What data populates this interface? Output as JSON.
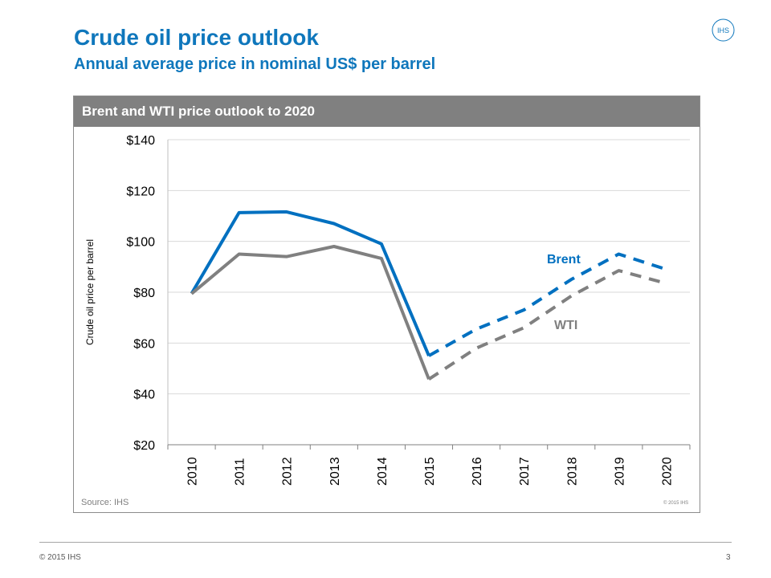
{
  "slide": {
    "title": "Crude oil price outlook",
    "subtitle": "Annual average price in nominal US$ per barrel",
    "logo_text": "IHS"
  },
  "panel": {
    "header": "Brent and WTI price outlook to 2020",
    "source": "Source: IHS",
    "copyright": "© 2015 IHS"
  },
  "footer": {
    "copyright": "© 2015 IHS",
    "page_number": "3"
  },
  "colors": {
    "title": "#0f77bc",
    "brent": "#0070c0",
    "wti": "#808080",
    "header_bg": "#808080"
  },
  "chart_data": {
    "type": "line",
    "title": "Brent and WTI price outlook to 2020",
    "xlabel": "",
    "ylabel": "Crude oil price per barrel",
    "categories": [
      "2010",
      "2011",
      "2012",
      "2013",
      "2014",
      "2015",
      "2016",
      "2017",
      "2018",
      "2019",
      "2020"
    ],
    "ylim": [
      20,
      140
    ],
    "yticks": [
      20,
      40,
      60,
      80,
      100,
      120,
      140
    ],
    "ytick_labels": [
      "$20",
      "$40",
      "$60",
      "$80",
      "$100",
      "$120",
      "$140"
    ],
    "grid": true,
    "legend": "inline labels",
    "series": [
      {
        "name": "Brent",
        "values": [
          79.5,
          111.3,
          111.6,
          107,
          99,
          55,
          65.5,
          73,
          85,
          95,
          89
        ],
        "color": "#0070c0",
        "dashed_from_index": 5
      },
      {
        "name": "WTI",
        "values": [
          79.4,
          95,
          94,
          98,
          93.3,
          45.8,
          58,
          66,
          78.5,
          88.5,
          83.5
        ],
        "color": "#808080",
        "dashed_from_index": 5
      }
    ]
  }
}
